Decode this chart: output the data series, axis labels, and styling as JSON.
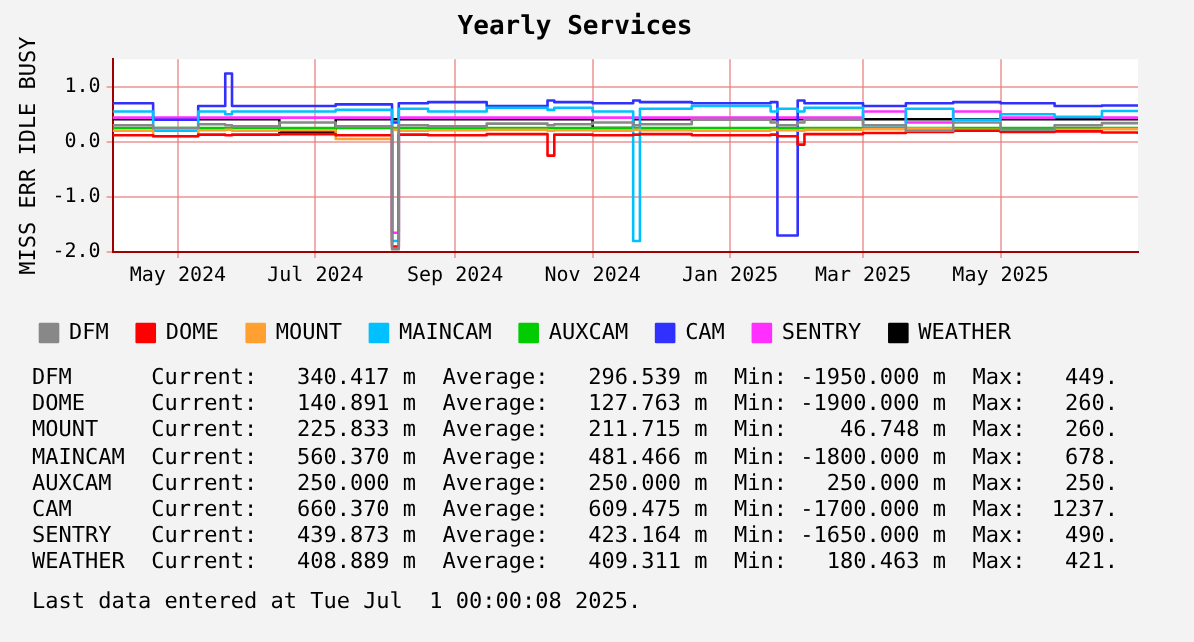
{
  "chart_data": {
    "type": "step",
    "title": "Yearly Services",
    "ylabel": "MISS ERR IDLE BUSY",
    "x": [
      "2024-04-02",
      "2024-04-20",
      "2024-05-10",
      "2024-05-22",
      "2024-05-25",
      "2024-06-15",
      "2024-07-10",
      "2024-08-04",
      "2024-08-07",
      "2024-08-20",
      "2024-09-15",
      "2024-10-12",
      "2024-10-15",
      "2024-11-01",
      "2024-11-19",
      "2024-11-22",
      "2024-12-15",
      "2025-01-19",
      "2025-01-22",
      "2025-01-31",
      "2025-02-03",
      "2025-03-01",
      "2025-03-20",
      "2025-04-10",
      "2025-05-01",
      "2025-05-25",
      "2025-06-15",
      "2025-07-01"
    ],
    "xlim": [
      "2024-04-02",
      "2025-07-01"
    ],
    "xticks": [
      {
        "value": "2024-05-01",
        "label": "May 2024"
      },
      {
        "value": "2024-07-01",
        "label": "Jul 2024"
      },
      {
        "value": "2024-09-01",
        "label": "Sep 2024"
      },
      {
        "value": "2024-11-01",
        "label": "Nov 2024"
      },
      {
        "value": "2025-01-01",
        "label": "Jan 2025"
      },
      {
        "value": "2025-03-01",
        "label": "Mar 2025"
      },
      {
        "value": "2025-05-01",
        "label": "May 2025"
      }
    ],
    "ylim": [
      -2.0,
      1.5
    ],
    "yticks": [
      {
        "value": -2,
        "label": "-2.0"
      },
      {
        "value": -1,
        "label": "-1.0"
      },
      {
        "value": 0,
        "label": "0.0"
      },
      {
        "value": 1,
        "label": "1.0"
      }
    ],
    "grid": true,
    "legend": "bottom",
    "series": [
      {
        "name": "DFM",
        "color": "#888888",
        "values": [
          0.3,
          0.25,
          0.32,
          0.3,
          0.28,
          0.35,
          0.28,
          -1.95,
          0.3,
          0.28,
          0.33,
          0.3,
          0.32,
          0.35,
          0.3,
          0.32,
          0.4,
          0.35,
          0.3,
          0.35,
          0.4,
          0.3,
          0.2,
          0.35,
          0.22,
          0.3,
          0.34,
          0.34
        ]
      },
      {
        "name": "DOME",
        "color": "#ff0000",
        "values": [
          0.12,
          0.1,
          0.13,
          0.12,
          0.13,
          0.14,
          0.12,
          -1.9,
          0.13,
          0.12,
          0.14,
          -0.25,
          0.13,
          0.12,
          0.13,
          0.14,
          0.12,
          0.13,
          0.1,
          -0.05,
          0.14,
          0.16,
          0.18,
          0.2,
          0.18,
          0.19,
          0.17,
          0.14
        ]
      },
      {
        "name": "MOUNT",
        "color": "#ffa030",
        "values": [
          0.2,
          0.1,
          0.21,
          0.22,
          0.2,
          0.21,
          0.05,
          0.22,
          0.2,
          0.21,
          0.22,
          0.2,
          0.21,
          0.2,
          0.22,
          0.21,
          0.2,
          0.22,
          0.21,
          0.2,
          0.22,
          0.23,
          0.24,
          0.22,
          0.21,
          0.22,
          0.23,
          0.23
        ]
      },
      {
        "name": "MAINCAM",
        "color": "#00c0ff",
        "values": [
          0.55,
          0.2,
          0.55,
          0.5,
          0.55,
          0.55,
          0.58,
          -1.8,
          0.6,
          0.55,
          0.62,
          0.58,
          0.62,
          0.55,
          -1.8,
          0.6,
          0.65,
          0.55,
          0.6,
          0.55,
          0.62,
          0.3,
          0.6,
          0.4,
          0.5,
          0.45,
          0.56,
          0.56
        ]
      },
      {
        "name": "AUXCAM",
        "color": "#00cc00",
        "values": [
          0.25,
          0.25,
          0.25,
          0.25,
          0.25,
          0.25,
          0.25,
          0.25,
          0.25,
          0.25,
          0.25,
          0.25,
          0.25,
          0.25,
          0.25,
          0.25,
          0.25,
          0.25,
          0.25,
          0.25,
          0.25,
          0.25,
          0.25,
          0.25,
          0.25,
          0.25,
          0.25,
          0.25
        ]
      },
      {
        "name": "CAM",
        "color": "#3030ff",
        "values": [
          0.7,
          0.4,
          0.65,
          1.24,
          0.65,
          0.65,
          0.68,
          0.35,
          0.7,
          0.72,
          0.65,
          0.75,
          0.72,
          0.7,
          0.75,
          0.72,
          0.7,
          0.72,
          -1.7,
          0.75,
          0.7,
          0.65,
          0.7,
          0.72,
          0.7,
          0.65,
          0.66,
          0.66
        ]
      },
      {
        "name": "SENTRY",
        "color": "#ff30ff",
        "values": [
          0.44,
          0.44,
          0.44,
          0.44,
          0.44,
          0.44,
          0.44,
          -1.65,
          0.44,
          0.44,
          0.44,
          0.44,
          0.44,
          0.44,
          0.44,
          0.44,
          0.44,
          0.44,
          0.44,
          0.44,
          0.44,
          0.55,
          0.35,
          0.55,
          0.44,
          0.45,
          0.44,
          0.44
        ]
      },
      {
        "name": "WEATHER",
        "color": "#000000",
        "values": [
          0.41,
          0.41,
          0.41,
          0.41,
          0.41,
          0.18,
          0.41,
          0.41,
          0.41,
          0.41,
          0.41,
          0.41,
          0.41,
          0.25,
          0.41,
          0.41,
          0.41,
          0.41,
          0.41,
          0.41,
          0.41,
          0.41,
          0.41,
          0.41,
          0.41,
          0.41,
          0.41,
          0.41
        ]
      }
    ],
    "annotations": [
      "DFM      Current:   340.417 m  Average:   296.539 m  Min: -1950.000 m  Max:   449.",
      "DOME     Current:   140.891 m  Average:   127.763 m  Min: -1900.000 m  Max:   260.",
      "MOUNT    Current:   225.833 m  Average:   211.715 m  Min:    46.748 m  Max:   260.",
      "MAINCAM  Current:   560.370 m  Average:   481.466 m  Min: -1800.000 m  Max:   678.",
      "AUXCAM   Current:   250.000 m  Average:   250.000 m  Min:   250.000 m  Max:   250.",
      "CAM      Current:   660.370 m  Average:   609.475 m  Min: -1700.000 m  Max:  1237.",
      "SENTRY   Current:   439.873 m  Average:   423.164 m  Min: -1650.000 m  Max:   490.",
      "WEATHER  Current:   408.889 m  Average:   409.311 m  Min:   180.463 m  Max:   421.",
      "Last data entered at Tue Jul  1 00:00:08 2025."
    ]
  }
}
